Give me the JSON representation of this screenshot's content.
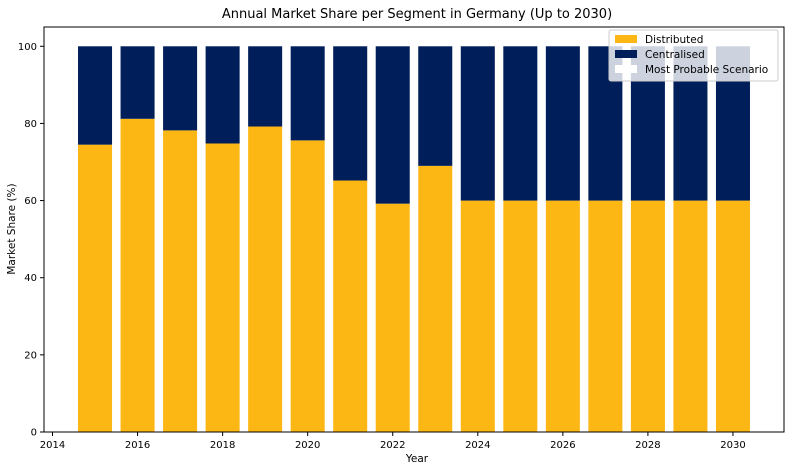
{
  "chart_data": {
    "type": "bar",
    "stacked": true,
    "title": "Annual Market Share per Segment in Germany (Up to 2030)",
    "xlabel": "Year",
    "ylabel": "Market Share (%)",
    "x": [
      2015,
      2016,
      2017,
      2018,
      2019,
      2020,
      2021,
      2022,
      2023,
      2024,
      2025,
      2026,
      2027,
      2028,
      2029,
      2030
    ],
    "xlim": [
      2013.8,
      2031.2
    ],
    "ylim": [
      0,
      105
    ],
    "xticks": [
      2014,
      2016,
      2018,
      2020,
      2022,
      2024,
      2026,
      2028,
      2030
    ],
    "yticks": [
      0,
      20,
      40,
      60,
      80,
      100
    ],
    "grid": false,
    "legend_position": "top-right",
    "series": [
      {
        "name": "Distributed",
        "color": "#FDB714",
        "values": [
          74.5,
          81.2,
          78.2,
          74.8,
          79.2,
          75.6,
          65.2,
          59.2,
          69.0,
          60,
          60,
          60,
          60,
          60,
          60,
          60
        ]
      },
      {
        "name": "Centralised",
        "color": "#001E5A",
        "values": [
          25.5,
          18.8,
          21.8,
          25.2,
          20.8,
          24.4,
          34.8,
          40.8,
          31.0,
          40,
          40,
          40,
          40,
          40,
          40,
          40
        ]
      }
    ],
    "legend": [
      {
        "label": "Distributed",
        "color": "#FDB714"
      },
      {
        "label": "Centralised",
        "color": "#001E5A"
      },
      {
        "label": "Most Probable Scenario",
        "color": "#FFFFFF"
      }
    ]
  }
}
